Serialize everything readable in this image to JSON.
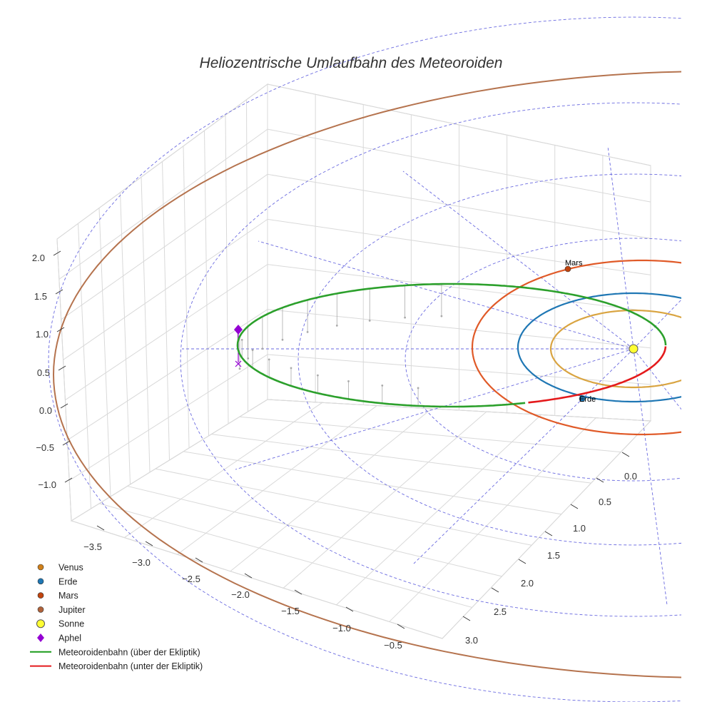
{
  "chart_data": {
    "type": "3d-line",
    "title": "Heliozentrische Umlaufbahn des Meteoroiden",
    "x_ticks": [
      "−3.5",
      "−3.0",
      "−2.5",
      "−2.0",
      "−1.5",
      "−1.0",
      "−0.5"
    ],
    "y_ticks": [
      "0.0",
      "0.5",
      "1.0",
      "1.5",
      "2.0",
      "2.5",
      "3.0"
    ],
    "z_ticks": [
      "2.0",
      "1.5",
      "1.0",
      "0.5",
      "0.0",
      "−0.5",
      "−1.0"
    ],
    "xlim": [
      -3.7,
      -0.3
    ],
    "ylim": [
      -0.2,
      3.2
    ],
    "zlim": [
      -1.4,
      2.2
    ],
    "series": [
      {
        "name": "Meteoroidenbahn (über der Ekliptik)",
        "color": "#2ca02c",
        "kind": "orbit"
      },
      {
        "name": "Meteoroidenbahn (unter der Ekliptik)",
        "color": "#e41a1c",
        "kind": "orbit"
      }
    ],
    "planet_orbits": [
      {
        "name": "Venus",
        "radius_au": 0.72,
        "color": "#d9a441"
      },
      {
        "name": "Erde",
        "radius_au": 1.0,
        "color": "#1f77b4"
      },
      {
        "name": "Mars",
        "radius_au": 1.52,
        "color": "#e05a28"
      },
      {
        "name": "Jupiter",
        "radius_au": 5.2,
        "color": "#b5734e"
      }
    ],
    "points": [
      {
        "name": "Mars",
        "label": "Mars",
        "color": "#c1440e"
      },
      {
        "name": "Erde",
        "label": "Erde",
        "color": "#1f77b4"
      },
      {
        "name": "Sonne",
        "color": "#ffff33"
      },
      {
        "name": "Aphel",
        "color": "#9400d3"
      }
    ],
    "legend": [
      {
        "label": "Venus",
        "marker": "dot",
        "color": "#d0801a"
      },
      {
        "label": "Erde",
        "marker": "dot",
        "color": "#1f77b4"
      },
      {
        "label": "Mars",
        "marker": "dot",
        "color": "#c1440e"
      },
      {
        "label": "Jupiter",
        "marker": "dot",
        "color": "#b0623a"
      },
      {
        "label": "Sonne",
        "marker": "sun",
        "color": "#ffff33"
      },
      {
        "label": "Aphel",
        "marker": "diamond",
        "color": "#9400d3"
      },
      {
        "label": "Meteoroidenbahn (über der Ekliptik)",
        "marker": "line",
        "color": "#1a9c1a"
      },
      {
        "label": "Meteoroidenbahn (unter der Ekliptik)",
        "marker": "line",
        "color": "#e41a1c"
      }
    ],
    "grid": true,
    "legend_position": "bottom-left"
  }
}
